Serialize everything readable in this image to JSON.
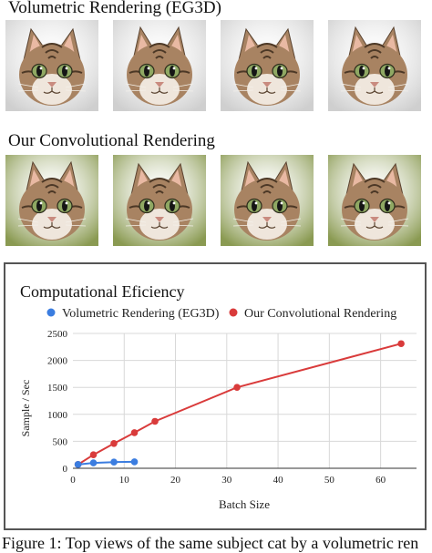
{
  "figure": {
    "row1_title": "Volumetric Rendering (EG3D)",
    "row2_title": "Our Convolutional Rendering",
    "caption": "Figure 1: Top views of the same subject cat by a volumetric ren"
  },
  "images": {
    "row1_background": "#cfcfcf",
    "row2_background": "#8a9a52",
    "cat_fur": "#a88362",
    "cat_eye": "#8fa863"
  },
  "chart_data": {
    "type": "line",
    "title": "Computational Eficiency",
    "xlabel": "Batch Size",
    "ylabel": "Sample / Sec",
    "xlim": [
      0,
      67
    ],
    "ylim": [
      0,
      2500
    ],
    "xticks": [
      "0",
      "10",
      "20",
      "30",
      "40",
      "50",
      "60"
    ],
    "yticks": [
      "0",
      "500",
      "1000",
      "1500",
      "2000",
      "2500"
    ],
    "grid": true,
    "legend_position": "top",
    "series": [
      {
        "name": "Volumetric Rendering (EG3D)",
        "color": "#3b7de0",
        "x": [
          1,
          4,
          8,
          12
        ],
        "y": [
          70,
          100,
          115,
          120
        ]
      },
      {
        "name": "Our Convolutional Rendering",
        "color": "#d93b3b",
        "x": [
          1,
          4,
          8,
          12,
          16,
          32,
          64
        ],
        "y": [
          70,
          250,
          460,
          660,
          870,
          1500,
          2310
        ]
      }
    ]
  }
}
